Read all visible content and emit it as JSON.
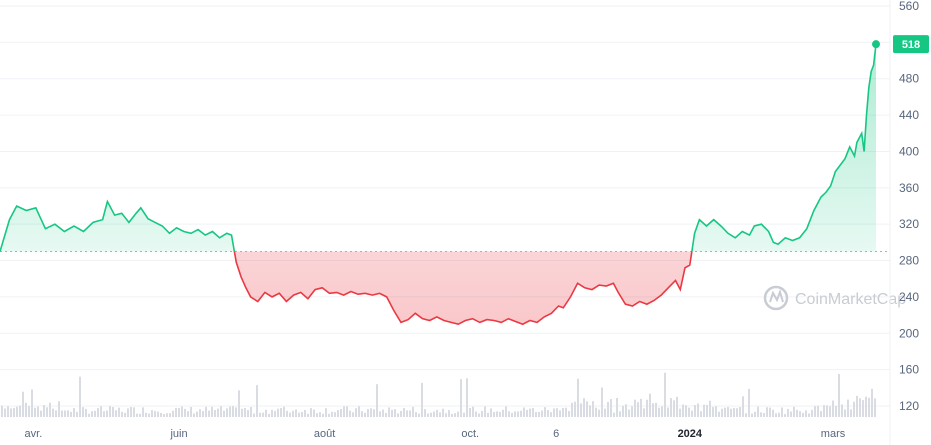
{
  "watermark": {
    "text": "CoinMarketCap",
    "icon": "coinmarketcap-logo-icon"
  },
  "colors": {
    "up": "#16c784",
    "down": "#ea3943",
    "grid": "#eff2f5",
    "axis_text": "#58667e",
    "baseline": "#a6b0c3",
    "volume": "#d9dde3"
  },
  "chart_data": {
    "type": "area",
    "title": "",
    "xlabel": "",
    "ylabel": "",
    "ylim": [
      110,
      570
    ],
    "y_ticks": [
      120,
      160,
      200,
      240,
      280,
      320,
      360,
      400,
      440,
      480,
      520,
      560
    ],
    "x_ticks": [
      {
        "label": "avr.",
        "date": "2023-04-01",
        "bold": false
      },
      {
        "label": "juin",
        "date": "2023-06-01",
        "bold": false
      },
      {
        "label": "août",
        "date": "2023-08-01",
        "bold": false
      },
      {
        "label": "oct.",
        "date": "2023-10-01",
        "bold": false
      },
      {
        "label": "6",
        "date": "2023-11-06",
        "bold": false
      },
      {
        "label": "2024",
        "date": "2024-01-01",
        "bold": true
      },
      {
        "label": "mars",
        "date": "2024-03-01",
        "bold": false
      }
    ],
    "baseline": 290,
    "last_price": {
      "value": 518,
      "label": "518"
    },
    "series": [
      {
        "points": [
          [
            "2023-03-18",
            290
          ],
          [
            "2023-03-22",
            325
          ],
          [
            "2023-03-25",
            340
          ],
          [
            "2023-03-29",
            335
          ],
          [
            "2023-04-02",
            338
          ],
          [
            "2023-04-06",
            315
          ],
          [
            "2023-04-10",
            320
          ],
          [
            "2023-04-14",
            312
          ],
          [
            "2023-04-18",
            318
          ],
          [
            "2023-04-22",
            312
          ],
          [
            "2023-04-26",
            322
          ],
          [
            "2023-04-30",
            325
          ],
          [
            "2023-05-02",
            345
          ],
          [
            "2023-05-05",
            330
          ],
          [
            "2023-05-08",
            332
          ],
          [
            "2023-05-11",
            322
          ],
          [
            "2023-05-14",
            332
          ],
          [
            "2023-05-16",
            338
          ],
          [
            "2023-05-19",
            326
          ],
          [
            "2023-05-22",
            322
          ],
          [
            "2023-05-25",
            318
          ],
          [
            "2023-05-28",
            310
          ],
          [
            "2023-05-31",
            316
          ],
          [
            "2023-06-03",
            312
          ],
          [
            "2023-06-06",
            310
          ],
          [
            "2023-06-09",
            314
          ],
          [
            "2023-06-12",
            308
          ],
          [
            "2023-06-15",
            312
          ],
          [
            "2023-06-18",
            305
          ],
          [
            "2023-06-21",
            310
          ],
          [
            "2023-06-23",
            308
          ],
          [
            "2023-06-25",
            278
          ],
          [
            "2023-06-27",
            262
          ],
          [
            "2023-06-29",
            250
          ],
          [
            "2023-07-01",
            240
          ],
          [
            "2023-07-04",
            235
          ],
          [
            "2023-07-07",
            245
          ],
          [
            "2023-07-10",
            240
          ],
          [
            "2023-07-13",
            244
          ],
          [
            "2023-07-16",
            235
          ],
          [
            "2023-07-19",
            242
          ],
          [
            "2023-07-22",
            245
          ],
          [
            "2023-07-25",
            238
          ],
          [
            "2023-07-28",
            248
          ],
          [
            "2023-07-31",
            250
          ],
          [
            "2023-08-03",
            244
          ],
          [
            "2023-08-06",
            245
          ],
          [
            "2023-08-09",
            242
          ],
          [
            "2023-08-12",
            246
          ],
          [
            "2023-08-15",
            243
          ],
          [
            "2023-08-18",
            244
          ],
          [
            "2023-08-21",
            242
          ],
          [
            "2023-08-24",
            244
          ],
          [
            "2023-08-27",
            240
          ],
          [
            "2023-08-30",
            225
          ],
          [
            "2023-09-02",
            212
          ],
          [
            "2023-09-05",
            215
          ],
          [
            "2023-09-08",
            222
          ],
          [
            "2023-09-11",
            216
          ],
          [
            "2023-09-14",
            214
          ],
          [
            "2023-09-17",
            218
          ],
          [
            "2023-09-20",
            214
          ],
          [
            "2023-09-23",
            212
          ],
          [
            "2023-09-26",
            210
          ],
          [
            "2023-09-29",
            214
          ],
          [
            "2023-10-02",
            216
          ],
          [
            "2023-10-05",
            212
          ],
          [
            "2023-10-08",
            215
          ],
          [
            "2023-10-11",
            214
          ],
          [
            "2023-10-14",
            212
          ],
          [
            "2023-10-17",
            216
          ],
          [
            "2023-10-20",
            213
          ],
          [
            "2023-10-23",
            210
          ],
          [
            "2023-10-26",
            214
          ],
          [
            "2023-10-29",
            212
          ],
          [
            "2023-11-01",
            218
          ],
          [
            "2023-11-04",
            222
          ],
          [
            "2023-11-07",
            230
          ],
          [
            "2023-11-09",
            228
          ],
          [
            "2023-11-12",
            240
          ],
          [
            "2023-11-15",
            255
          ],
          [
            "2023-11-18",
            250
          ],
          [
            "2023-11-21",
            248
          ],
          [
            "2023-11-24",
            253
          ],
          [
            "2023-11-27",
            252
          ],
          [
            "2023-11-30",
            255
          ],
          [
            "2023-12-02",
            245
          ],
          [
            "2023-12-05",
            232
          ],
          [
            "2023-12-08",
            230
          ],
          [
            "2023-12-11",
            235
          ],
          [
            "2023-12-14",
            232
          ],
          [
            "2023-12-17",
            236
          ],
          [
            "2023-12-20",
            242
          ],
          [
            "2023-12-23",
            250
          ],
          [
            "2023-12-26",
            258
          ],
          [
            "2023-12-28",
            248
          ],
          [
            "2023-12-30",
            272
          ],
          [
            "2024-01-01",
            275
          ],
          [
            "2024-01-03",
            310
          ],
          [
            "2024-01-05",
            325
          ],
          [
            "2024-01-08",
            318
          ],
          [
            "2024-01-11",
            325
          ],
          [
            "2024-01-14",
            318
          ],
          [
            "2024-01-17",
            310
          ],
          [
            "2024-01-20",
            305
          ],
          [
            "2024-01-23",
            312
          ],
          [
            "2024-01-26",
            308
          ],
          [
            "2024-01-28",
            318
          ],
          [
            "2024-01-31",
            320
          ],
          [
            "2024-02-03",
            312
          ],
          [
            "2024-02-05",
            300
          ],
          [
            "2024-02-07",
            298
          ],
          [
            "2024-02-10",
            305
          ],
          [
            "2024-02-13",
            302
          ],
          [
            "2024-02-16",
            305
          ],
          [
            "2024-02-19",
            315
          ],
          [
            "2024-02-22",
            335
          ],
          [
            "2024-02-25",
            350
          ],
          [
            "2024-02-27",
            355
          ],
          [
            "2024-02-29",
            362
          ],
          [
            "2024-03-02",
            378
          ],
          [
            "2024-03-04",
            385
          ],
          [
            "2024-03-06",
            392
          ],
          [
            "2024-03-08",
            405
          ],
          [
            "2024-03-10",
            395
          ],
          [
            "2024-03-11",
            410
          ],
          [
            "2024-03-13",
            420
          ],
          [
            "2024-03-14",
            400
          ],
          [
            "2024-03-15",
            440
          ],
          [
            "2024-03-16",
            470
          ],
          [
            "2024-03-17",
            488
          ],
          [
            "2024-03-18",
            495
          ],
          [
            "2024-03-19",
            518
          ]
        ]
      }
    ]
  }
}
